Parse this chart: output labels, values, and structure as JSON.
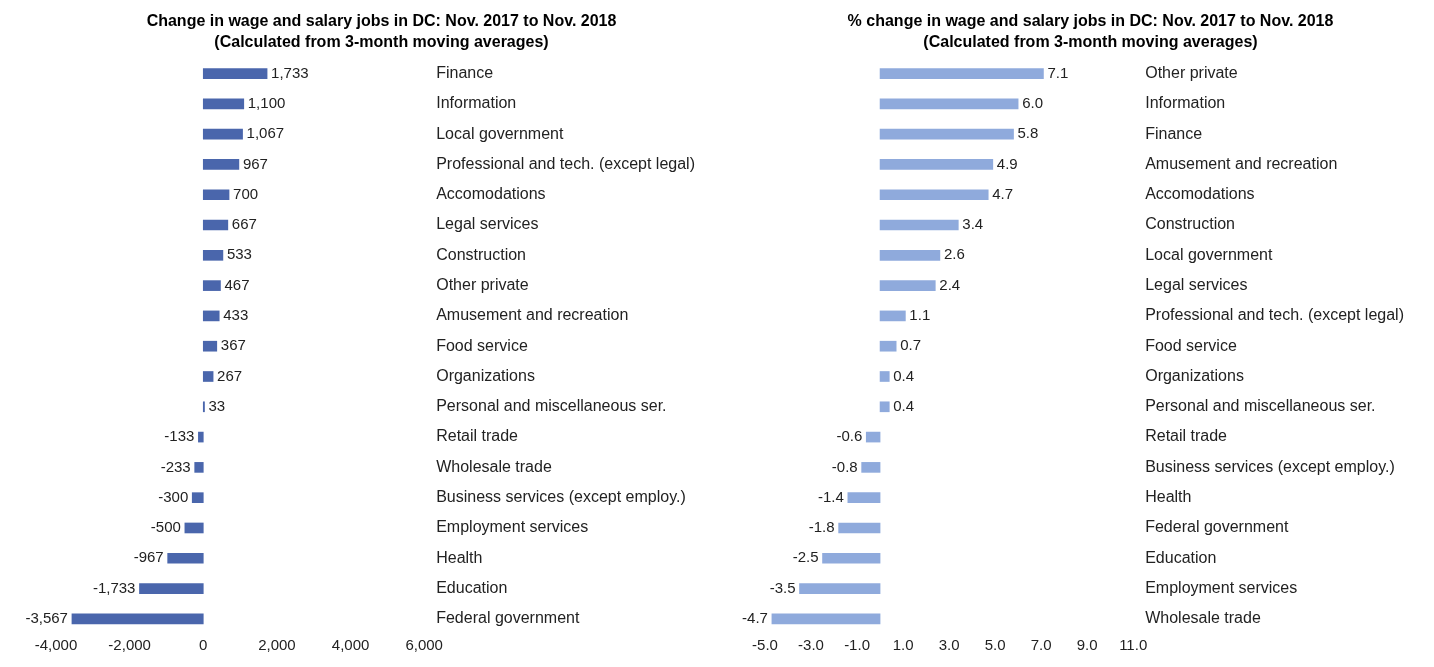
{
  "chart_data": [
    {
      "type": "bar",
      "orientation": "horizontal",
      "title": "Change in wage and salary jobs in DC: Nov. 2017 to Nov. 2018",
      "subtitle": "(Calculated from 3-month moving averages)",
      "color": "#4a66ac",
      "categories": [
        "Finance",
        "Information",
        "Local government",
        "Professional and tech. (except legal)",
        "Accomodations",
        "Legal services",
        "Construction",
        "Other private",
        "Amusement and recreation",
        "Food service",
        "Organizations",
        "Personal and miscellaneous ser.",
        "Retail trade",
        "Wholesale trade",
        "Business services (except employ.)",
        "Employment services",
        "Health",
        "Education",
        "Federal government"
      ],
      "values": [
        1733,
        1100,
        1067,
        967,
        700,
        667,
        533,
        467,
        433,
        367,
        267,
        33,
        -133,
        -233,
        -300,
        -500,
        -967,
        -1733,
        -3567
      ],
      "value_labels": [
        "1,733",
        "1,100",
        "1,067",
        "967",
        "700",
        "667",
        "533",
        "467",
        "433",
        "367",
        "267",
        "33",
        "-133",
        "-233",
        "-300",
        "-500",
        "-967",
        "-1,733",
        "-3,567"
      ],
      "xlim": [
        -4000,
        6000
      ],
      "xticks": [
        {
          "value": -4000,
          "label": "-4,000"
        },
        {
          "value": -2000,
          "label": "-2,000"
        },
        0,
        {
          "value": 2000,
          "label": "2,000"
        },
        {
          "value": 4000,
          "label": "4,000"
        },
        {
          "value": 6000,
          "label": "6,000"
        }
      ]
    },
    {
      "type": "bar",
      "orientation": "horizontal",
      "title": "% change in wage and salary jobs in DC: Nov. 2017 to Nov. 2018",
      "subtitle": "(Calculated from 3-month moving averages)",
      "color": "#8faadc",
      "categories": [
        "Other private",
        "Information",
        "Finance",
        "Amusement and recreation",
        "Accomodations",
        "Construction",
        "Local government",
        "Legal services",
        "Professional and tech. (except legal)",
        "Food service",
        "Organizations",
        "Personal and miscellaneous ser.",
        "Retail trade",
        "Business services (except employ.)",
        "Health",
        "Federal government",
        "Education",
        "Employment services",
        "Wholesale trade"
      ],
      "values": [
        7.1,
        6.0,
        5.8,
        4.9,
        4.7,
        3.4,
        2.6,
        2.4,
        1.1,
        0.7,
        0.4,
        0.4,
        -0.6,
        -0.8,
        -1.4,
        -1.8,
        -2.5,
        -3.5,
        -4.7
      ],
      "value_labels": [
        "7.1",
        "6.0",
        "5.8",
        "4.9",
        "4.7",
        "3.4",
        "2.6",
        "2.4",
        "1.1",
        "0.7",
        "0.4",
        "0.4",
        "-0.6",
        "-0.8",
        "-1.4",
        "-1.8",
        "-2.5",
        "-3.5",
        "-4.7"
      ],
      "xlim": [
        -5,
        11
      ],
      "xticks": [
        {
          "value": -5,
          "label": "-5.0"
        },
        {
          "value": -3,
          "label": "-3.0"
        },
        {
          "value": -1,
          "label": "-1.0"
        },
        {
          "value": 1,
          "label": "1.0"
        },
        {
          "value": 3,
          "label": "3.0"
        },
        {
          "value": 5,
          "label": "5.0"
        },
        {
          "value": 7,
          "label": "7.0"
        },
        {
          "value": 9,
          "label": "9.0"
        },
        {
          "value": 11,
          "label": "11.0"
        }
      ]
    }
  ]
}
